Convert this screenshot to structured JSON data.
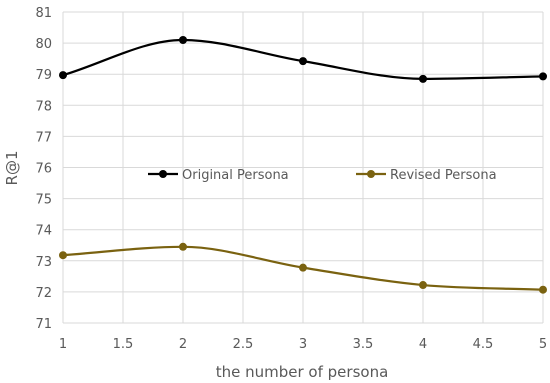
{
  "chart_data": {
    "type": "line",
    "title": "",
    "xlabel": "the number of persona",
    "ylabel": "R@1",
    "xlim": [
      1,
      5
    ],
    "ylim": [
      71,
      81
    ],
    "x_ticks": [
      "1",
      "1.5",
      "2",
      "2.5",
      "3",
      "3.5",
      "4",
      "4.5",
      "5"
    ],
    "y_ticks": [
      "71",
      "72",
      "73",
      "74",
      "75",
      "76",
      "77",
      "78",
      "79",
      "80",
      "81"
    ],
    "grid": true,
    "legend_position": "center",
    "smooth": true,
    "series": [
      {
        "name": "Original Persona",
        "color": "#000000",
        "x": [
          1,
          2,
          3,
          4,
          5
        ],
        "y": [
          78.97,
          80.1,
          79.42,
          78.85,
          78.93
        ]
      },
      {
        "name": "Revised Persona",
        "color": "#7a6210",
        "x": [
          1,
          2,
          3,
          4,
          5
        ],
        "y": [
          73.18,
          73.45,
          72.78,
          72.22,
          72.07
        ]
      }
    ]
  }
}
